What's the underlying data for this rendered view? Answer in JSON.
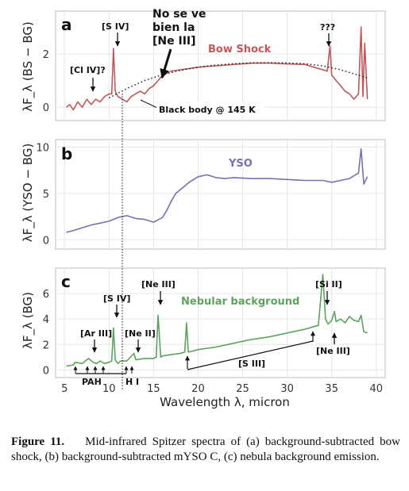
{
  "figure": {
    "caption_label": "Figure 11.",
    "caption_text": "Mid-infrared Spitzer spectra of (a) background-subtracted bow shock, (b) background-subtracted mYSO C, (c) nebula background emission.",
    "xlabel": "Wavelength λ, micron",
    "colors": {
      "bow": "#c0585a",
      "yso": "#7b6fb0",
      "neb": "#5ea35e",
      "panel_bg": "#ffffff",
      "grid": "#e6e6e6",
      "frame": "#c8c8c8",
      "text": "#111111"
    }
  },
  "chart_data": [
    {
      "panel_letter": "a",
      "type": "line",
      "ylabel": "λF_λ (BS − BG)",
      "xlim": [
        4,
        41
      ],
      "ylim": [
        -0.5,
        3.6
      ],
      "yticks": [
        0,
        2
      ],
      "xticks": [
        5,
        10,
        15,
        20,
        25,
        30,
        35,
        40
      ],
      "series": [
        {
          "name": "Bow Shock",
          "x": [
            5.2,
            5.6,
            6.0,
            6.5,
            7.0,
            7.5,
            8.0,
            8.5,
            9.0,
            9.5,
            10.0,
            10.3,
            10.5,
            10.7,
            11.0,
            11.5,
            12.0,
            12.5,
            13.0,
            13.5,
            14.0,
            14.5,
            15.0,
            15.5,
            16.0,
            17.0,
            18.0,
            19.0,
            20.0,
            22.0,
            24.0,
            26.0,
            28.0,
            30.0,
            32.0,
            33.0,
            34.0,
            34.5,
            34.8,
            35.0,
            35.5,
            36.0,
            36.5,
            37.0,
            37.5,
            38.0,
            38.3,
            38.5,
            38.7,
            39.0
          ],
          "y": [
            0.0,
            0.1,
            -0.1,
            0.2,
            0.0,
            0.3,
            0.1,
            0.3,
            0.2,
            0.4,
            0.5,
            0.5,
            2.2,
            0.6,
            0.4,
            0.3,
            0.2,
            0.4,
            0.5,
            0.6,
            0.5,
            0.7,
            0.8,
            1.0,
            1.2,
            1.35,
            1.4,
            1.45,
            1.5,
            1.55,
            1.6,
            1.65,
            1.65,
            1.62,
            1.6,
            1.5,
            1.4,
            1.35,
            2.3,
            1.2,
            1.0,
            0.8,
            0.6,
            0.5,
            0.3,
            0.5,
            3.0,
            0.4,
            2.4,
            0.3
          ]
        },
        {
          "name": "Black body @ 145 K",
          "x": [
            10,
            12,
            14,
            16,
            18,
            20,
            22,
            24,
            26,
            28,
            30,
            32,
            34,
            36,
            38,
            39
          ],
          "y": [
            0.35,
            0.7,
            1.0,
            1.22,
            1.38,
            1.5,
            1.58,
            1.63,
            1.66,
            1.67,
            1.66,
            1.63,
            1.55,
            1.4,
            1.2,
            1.1
          ]
        }
      ],
      "annotations": [
        "[S IV]",
        "[Cl IV]?",
        "No se ve bien la [Ne III]",
        "???",
        "Black body @ 145 K",
        "Bow Shock"
      ]
    },
    {
      "panel_letter": "b",
      "type": "line",
      "ylabel": "λF_λ (YSO − BG)",
      "xlim": [
        4,
        41
      ],
      "ylim": [
        -1,
        10.8
      ],
      "yticks": [
        0,
        5,
        10
      ],
      "xticks": [
        5,
        10,
        15,
        20,
        25,
        30,
        35,
        40
      ],
      "series": [
        {
          "name": "YSO",
          "x": [
            5.2,
            6,
            7,
            8,
            9,
            10,
            11,
            12,
            13,
            14,
            15,
            16,
            16.5,
            17,
            17.5,
            18,
            18.5,
            19,
            20,
            21,
            22,
            23,
            24,
            26,
            28,
            30,
            32,
            34,
            35,
            36,
            37,
            38,
            38.3,
            38.6,
            39
          ],
          "y": [
            0.8,
            1.0,
            1.3,
            1.6,
            1.8,
            2.0,
            2.4,
            2.6,
            2.3,
            2.2,
            1.9,
            2.4,
            3.2,
            4.2,
            5.0,
            5.4,
            5.8,
            6.2,
            6.8,
            7.0,
            6.7,
            6.6,
            6.7,
            6.6,
            6.6,
            6.5,
            6.4,
            6.4,
            6.2,
            6.4,
            6.6,
            7.2,
            9.8,
            6.0,
            6.8
          ]
        }
      ],
      "annotations": [
        "YSO"
      ]
    },
    {
      "panel_letter": "c",
      "type": "line",
      "ylabel": "λF_λ (BG)",
      "xlim": [
        4,
        41
      ],
      "ylim": [
        -0.6,
        8.0
      ],
      "yticks": [
        0,
        2,
        4,
        6
      ],
      "xticks": [
        5,
        10,
        15,
        20,
        25,
        30,
        35,
        40
      ],
      "series": [
        {
          "name": "Nebular background",
          "x": [
            5.2,
            6,
            6.2,
            7,
            7.7,
            8.2,
            8.6,
            9,
            9.5,
            10,
            10.3,
            10.5,
            10.7,
            11,
            11.3,
            12,
            12.8,
            13,
            14,
            15,
            15.3,
            15.5,
            15.8,
            16,
            17,
            18,
            18.5,
            18.7,
            18.9,
            19.5,
            20,
            22,
            24,
            26,
            28,
            30,
            32,
            33,
            33.5,
            34,
            34.3,
            34.6,
            35,
            35.3,
            35.5,
            36,
            36.5,
            37,
            37.5,
            38,
            38.3,
            38.6,
            39
          ],
          "y": [
            0.3,
            0.4,
            0.6,
            0.5,
            0.9,
            0.6,
            0.5,
            0.7,
            0.5,
            0.6,
            0.7,
            3.3,
            0.8,
            0.5,
            0.7,
            0.7,
            1.3,
            0.8,
            0.9,
            0.9,
            1.0,
            4.3,
            1.0,
            1.1,
            1.2,
            1.3,
            1.4,
            3.7,
            1.4,
            1.5,
            1.6,
            1.8,
            2.1,
            2.4,
            2.6,
            2.9,
            3.2,
            3.4,
            3.5,
            7.5,
            4.0,
            3.6,
            3.9,
            4.6,
            3.8,
            4.0,
            3.7,
            4.2,
            3.9,
            3.8,
            4.3,
            3.0,
            2.9
          ]
        }
      ],
      "annotations": [
        "[S IV]",
        "[Ne III]",
        "[Ar III]",
        "[Ne II]",
        "PAH",
        "H I",
        "[S III]",
        "[Si II]",
        "[Ne III]",
        "Nebular background"
      ]
    }
  ]
}
